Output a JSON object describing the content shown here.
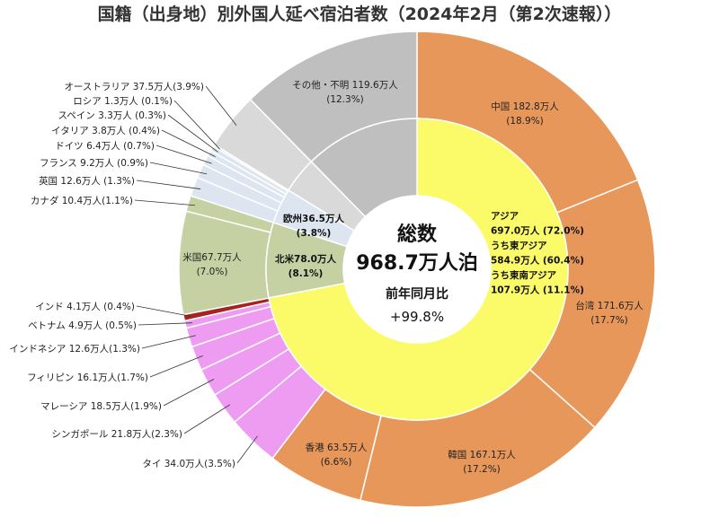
{
  "chart_data": {
    "type": "pie",
    "title": "国籍（出身地）別外国人延べ宿泊者数（2024年2月（第2次速報））",
    "center": {
      "label": "総数",
      "total": "968.7万人泊",
      "yoy_label": "前年同月比",
      "yoy_value": "+99.8%"
    },
    "outer_ring": [
      {
        "name": "中国",
        "value": 182.8,
        "share": 18.9,
        "color": "#E8975A",
        "l1": "中国 182.8万人",
        "l2": "(18.9%)"
      },
      {
        "name": "台湾",
        "value": 171.6,
        "share": 17.7,
        "color": "#E8975A",
        "l1": "台湾 171.6万人",
        "l2": "(17.7%)"
      },
      {
        "name": "韓国",
        "value": 167.1,
        "share": 17.2,
        "color": "#E8975A",
        "l1": "韓国 167.1万人",
        "l2": "(17.2%)"
      },
      {
        "name": "香港",
        "value": 63.5,
        "share": 6.6,
        "color": "#E8975A",
        "l1": "香港 63.5万人",
        "l2": "(6.6%)"
      },
      {
        "name": "タイ",
        "value": 34.0,
        "share": 3.5,
        "color": "#EE9CF2",
        "l1": "タイ 34.0万人(3.5%)"
      },
      {
        "name": "シンガポール",
        "value": 21.8,
        "share": 2.3,
        "color": "#EE9CF2",
        "l1": "シンガポール 21.8万人(2.3%)"
      },
      {
        "name": "マレーシア",
        "value": 18.5,
        "share": 1.9,
        "color": "#EE9CF2",
        "l1": "マレーシア 18.5万人(1.9%)"
      },
      {
        "name": "フィリピン",
        "value": 16.1,
        "share": 1.7,
        "color": "#EE9CF2",
        "l1": "フィリピン 16.1万人(1.7%)"
      },
      {
        "name": "インドネシア",
        "value": 12.6,
        "share": 1.3,
        "color": "#EE9CF2",
        "l1": "インドネシア 12.6万人(1.3%)"
      },
      {
        "name": "ベトナム",
        "value": 4.9,
        "share": 0.5,
        "color": "#EE9CF2",
        "l1": "ベトナム 4.9万人 (0.5%)"
      },
      {
        "name": "インド",
        "value": 4.1,
        "share": 0.4,
        "color": "#A6231F",
        "l1": "インド 4.1万人 (0.4%)"
      },
      {
        "name": "米国",
        "value": 67.7,
        "share": 7.0,
        "color": "#C6D1A3",
        "l1": "米国67.7万人",
        "l2": "(7.0%)"
      },
      {
        "name": "カナダ",
        "value": 10.4,
        "share": 1.1,
        "color": "#C6D1A3",
        "l1": "カナダ 10.4万人(1.1%)"
      },
      {
        "name": "英国",
        "value": 12.6,
        "share": 1.3,
        "color": "#DCE5F0",
        "l1": "英国 12.6万人 (1.3%)"
      },
      {
        "name": "フランス",
        "value": 9.2,
        "share": 0.9,
        "color": "#DCE5F0",
        "l1": "フランス 9.2万人 (0.9%)"
      },
      {
        "name": "ドイツ",
        "value": 6.4,
        "share": 0.7,
        "color": "#DCE5F0",
        "l1": "ドイツ 6.4万人 (0.7%)"
      },
      {
        "name": "イタリア",
        "value": 3.8,
        "share": 0.4,
        "color": "#DCE5F0",
        "l1": "イタリア 3.8万人 (0.4%)"
      },
      {
        "name": "スペイン",
        "value": 3.3,
        "share": 0.3,
        "color": "#DCE5F0",
        "l1": "スペイン 3.3万人 (0.3%)"
      },
      {
        "name": "ロシア",
        "value": 1.3,
        "share": 0.1,
        "color": "#DCE5F0",
        "l1": "ロシア 1.3万人 (0.1%)"
      },
      {
        "name": "オーストラリア",
        "value": 37.5,
        "share": 3.9,
        "color": "#D9D9D9",
        "l1": "オーストラリア 37.5万人(3.9%)"
      },
      {
        "name": "その他・不明",
        "value": 119.6,
        "share": 12.3,
        "color": "#BFBFBF",
        "l1": "その他・不明 119.6万人",
        "l2": "(12.3%)"
      }
    ],
    "inner_ring": [
      {
        "name": "アジア",
        "value": 697.0,
        "share": 72.0,
        "color": "#FBFB6A",
        "lines": [
          "アジア",
          "697.0万人 (72.0%)",
          "うち東アジア",
          "584.9万人 (60.4%)",
          "うち東南アジア",
          "107.9万人 (11.1%)"
        ]
      },
      {
        "name": "北米",
        "value": 78.0,
        "share": 8.1,
        "color": "#C6D1A3",
        "lines": [
          "北米78.0万人",
          "(8.1%)"
        ]
      },
      {
        "name": "欧州",
        "value": 36.5,
        "share": 3.8,
        "color": "#DCE5F0",
        "lines": [
          "欧州36.5万人",
          "(3.8%)"
        ]
      },
      {
        "name": "other",
        "value": 37.5,
        "share": 3.9,
        "color": "#D9D9D9",
        "lines": []
      },
      {
        "name": "other2",
        "value": 119.6,
        "share": 12.3,
        "color": "#BFBFBF",
        "lines": []
      }
    ]
  }
}
